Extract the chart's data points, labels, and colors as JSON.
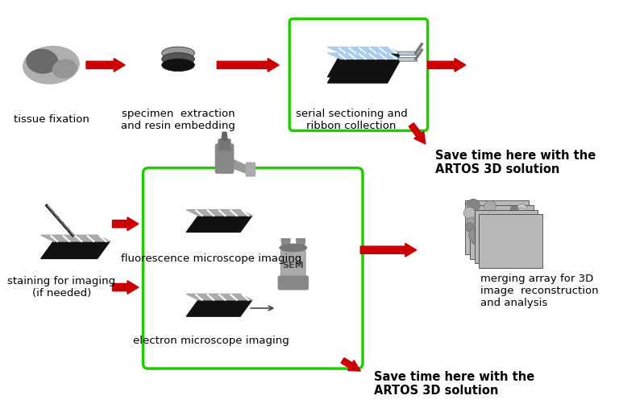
{
  "bg_color": "#ffffff",
  "green_border": "#22cc00",
  "red_arrow_color": "#cc0000",
  "dark_color": "#111111",
  "gray_color": "#888888",
  "light_gray": "#cccccc",
  "blue_section": "#aaccee",
  "labels": {
    "tissue": "tissue fixation",
    "specimen": "specimen  extraction\nand resin embedding",
    "serial": "serial sectioning and\nribbon collection",
    "staining": "staining for imaging\n(if needed)",
    "fluorescence": "fluorescence microscope imaging",
    "electron": "electron microscope imaging",
    "merging": "merging array for 3D\nimage  reconstruction\nand analysis",
    "save1": "Save time here with the\nARTOS 3D solution",
    "save2": "Save time here with the\nARTOS 3D solution"
  },
  "label_fontsize": 9.5,
  "save_fontsize": 10.5
}
